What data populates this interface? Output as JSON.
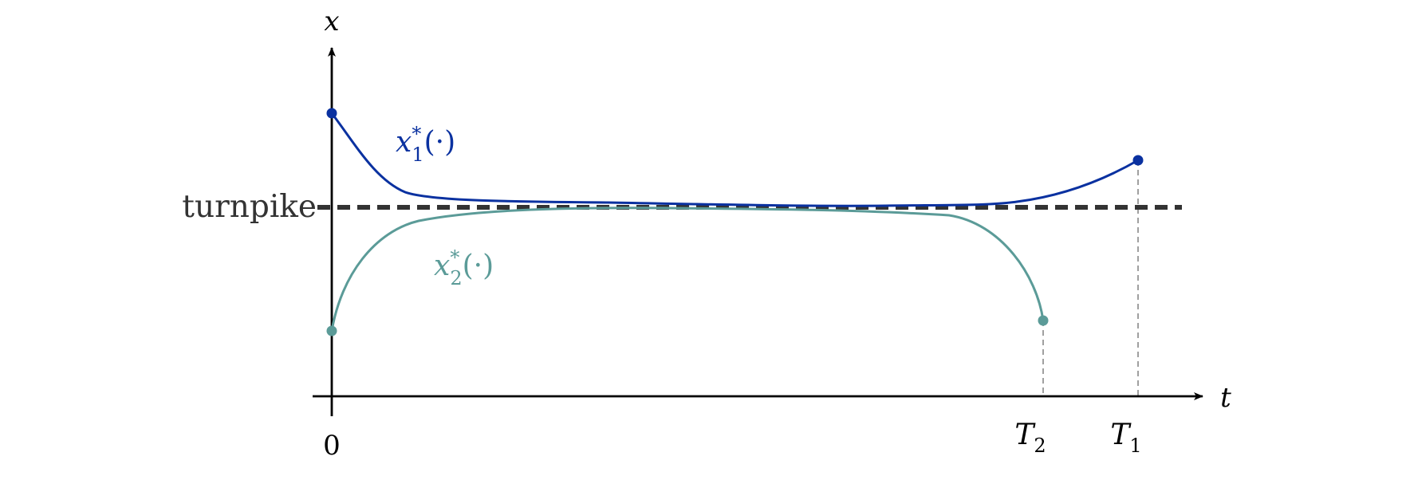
{
  "axes": {
    "y_label": "x",
    "x_label": "t",
    "origin_label": "0"
  },
  "turnpike": {
    "label": "turnpike",
    "color": "#333333"
  },
  "curves": [
    {
      "id": "x1",
      "label_base": "x",
      "label_sup": "*",
      "label_sub": "1",
      "label_arg": "(·)",
      "color": "#0a31a0"
    },
    {
      "id": "x2",
      "label_base": "x",
      "label_sup": "*",
      "label_sub": "2",
      "label_arg": "(·)",
      "color": "#5b9b98"
    }
  ],
  "horizons": [
    {
      "base": "T",
      "sub": "2"
    },
    {
      "base": "T",
      "sub": "1"
    }
  ],
  "colors": {
    "axis": "#000000",
    "guide": "#888888"
  }
}
